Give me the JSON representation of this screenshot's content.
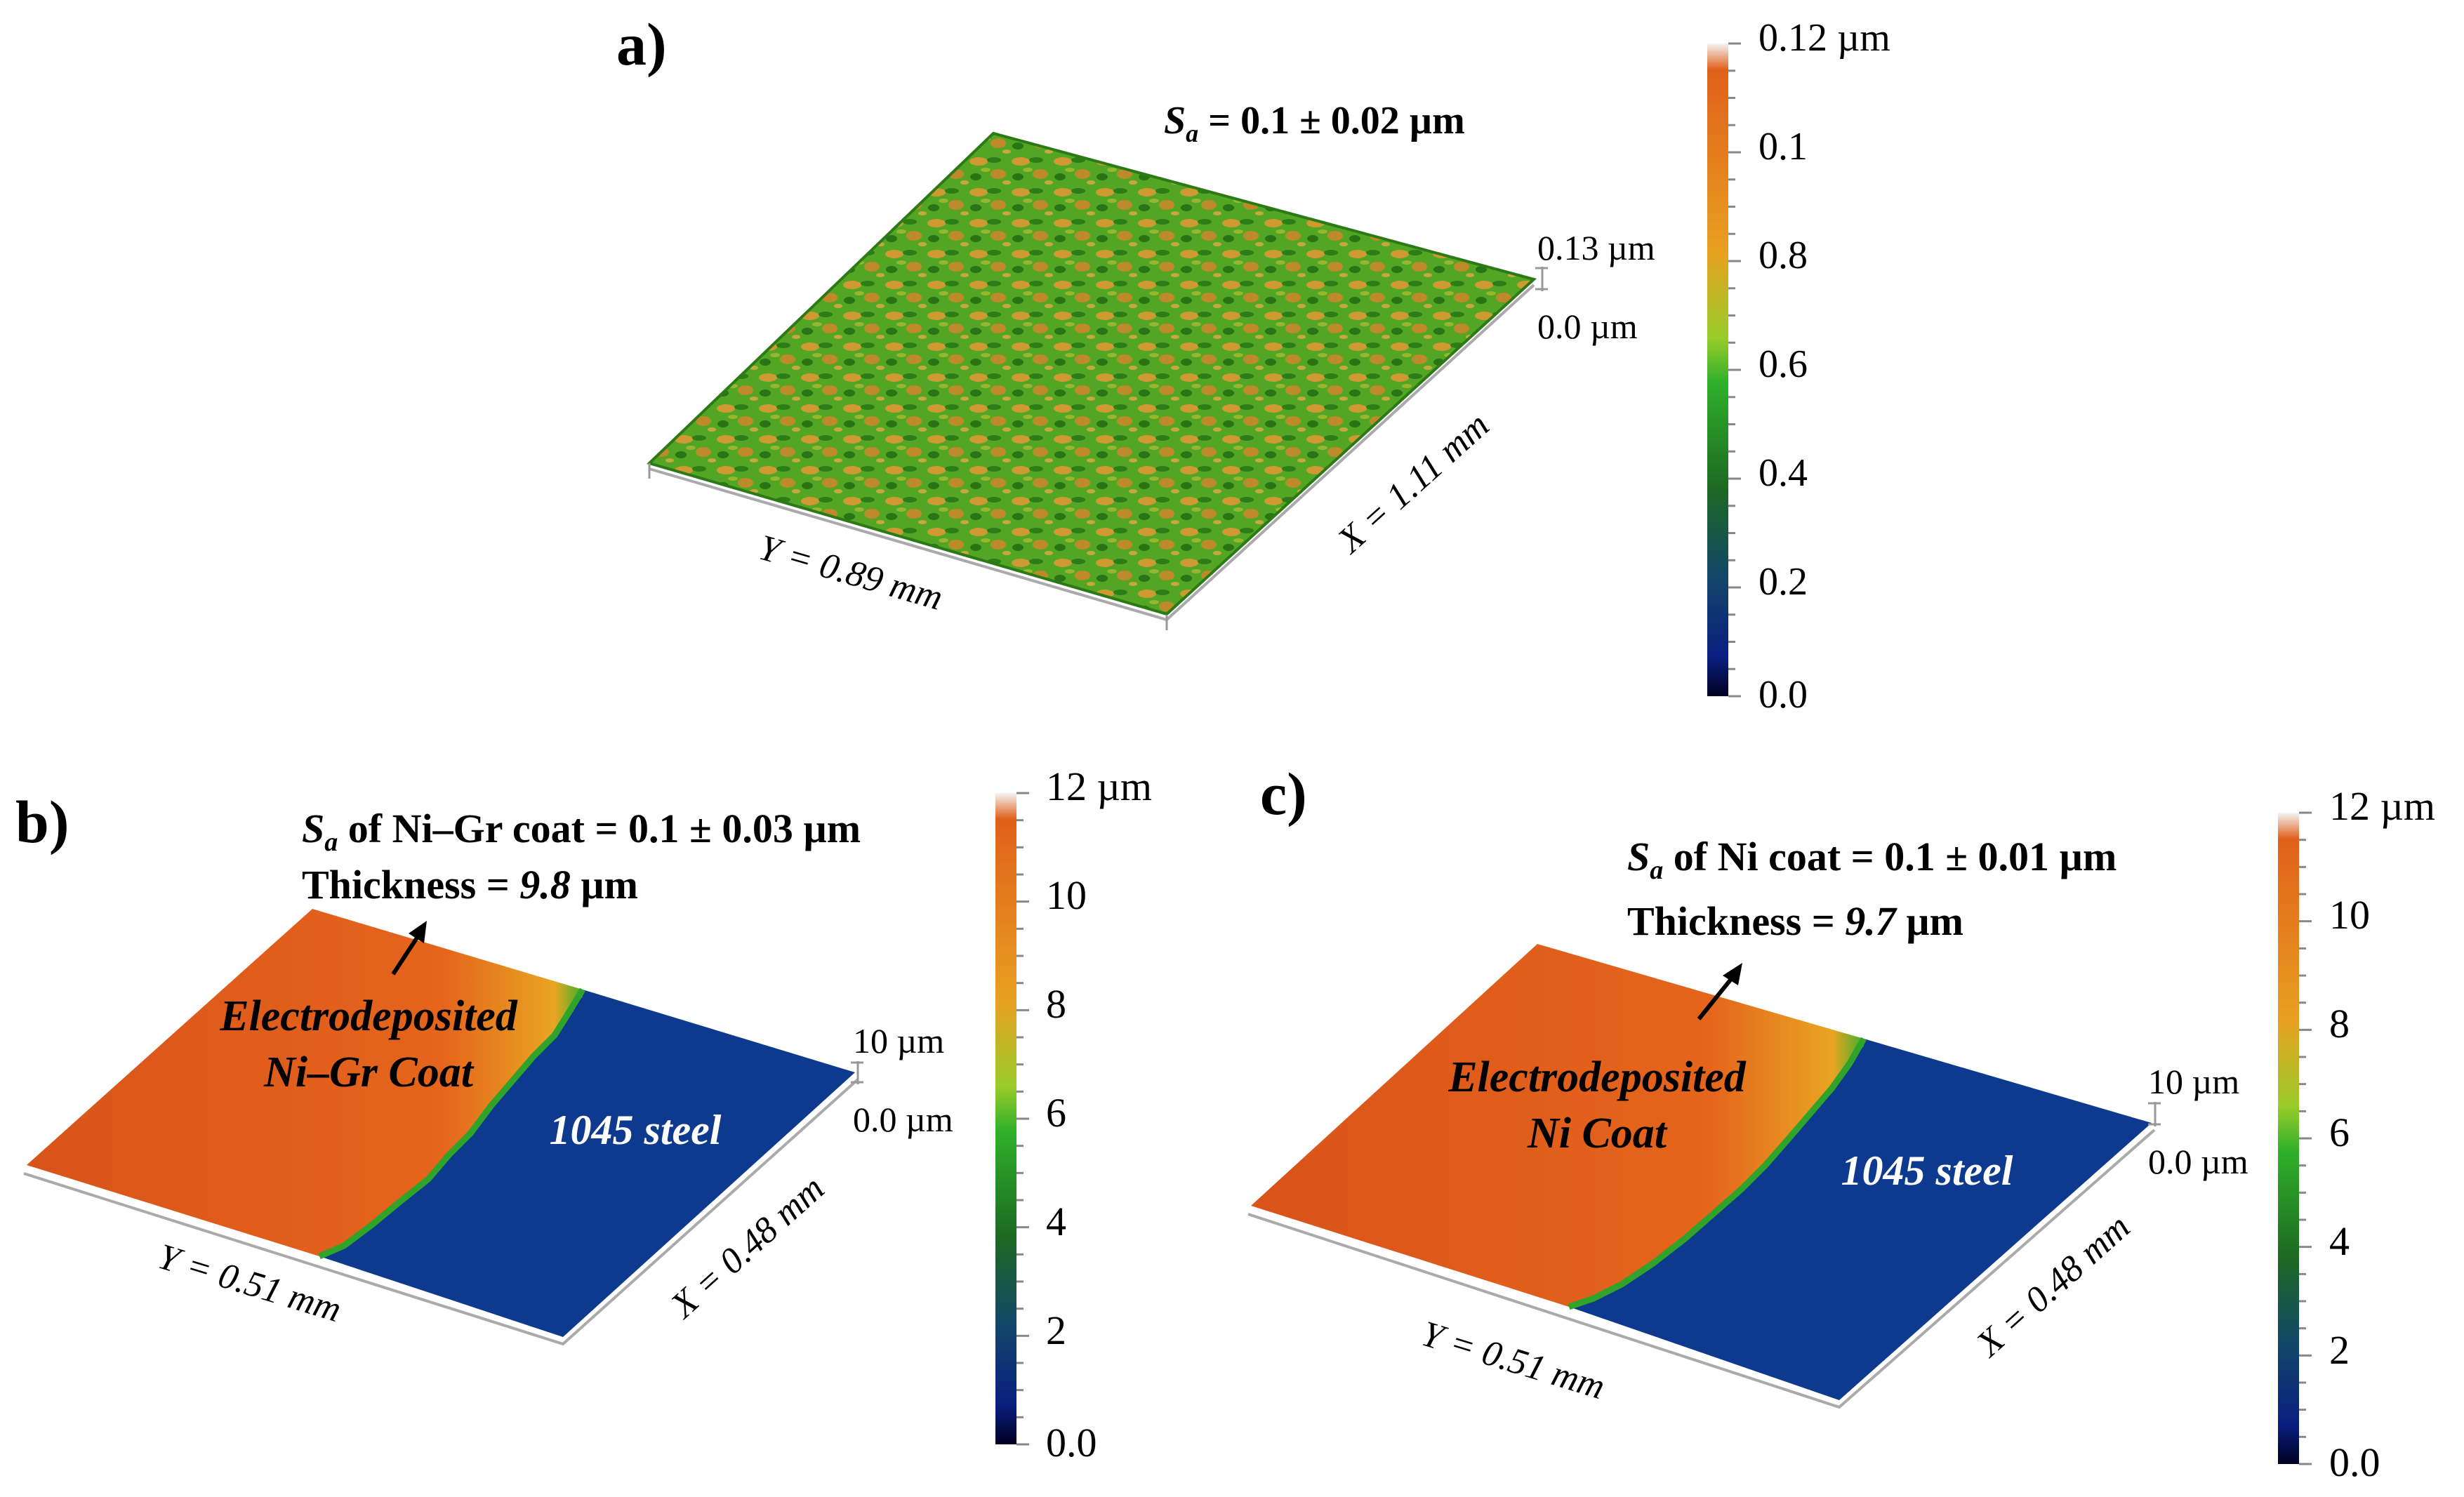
{
  "figure": {
    "panels": [
      {
        "id": "a",
        "label": "a)",
        "sa_symbol": "S",
        "sa_subscript": "a",
        "sa_text": " = 0.1 ± 0.02 µm",
        "z_max_label": "0.13 µm",
        "z_min_label": "0.0 µm",
        "y_dim_label": "Y = 0.89 mm",
        "x_dim_label": "X = 1.11 mm",
        "colorbar_ticks": [
          "0.12 µm",
          "0.1",
          "0.8",
          "0.6",
          "0.4",
          "0.2",
          "0.0"
        ]
      },
      {
        "id": "b",
        "label": "b)",
        "sa_symbol": "S",
        "sa_subscript": "a",
        "sa_text": " of Ni–Gr coat = 0.1 ± 0.03 µm",
        "thickness_prefix": "Thickness = ",
        "thickness_value": "9.8",
        "thickness_unit": " µm",
        "coat_label_line1": "Electrodeposited",
        "coat_label_line2": "Ni–Gr Coat",
        "substrate_label": "1045 steel",
        "z_max_label": "10 µm",
        "z_min_label": "0.0 µm",
        "y_dim_label": "Y = 0.51 mm",
        "x_dim_label": "X = 0.48 mm",
        "colorbar_ticks": [
          "12 µm",
          "10",
          "8",
          "6",
          "4",
          "2",
          "0.0"
        ]
      },
      {
        "id": "c",
        "label": "c)",
        "sa_symbol": "S",
        "sa_subscript": "a",
        "sa_text": " of Ni coat = 0.1 ± 0.01 µm",
        "thickness_prefix": "Thickness = ",
        "thickness_value": "9.7",
        "thickness_unit": " µm",
        "coat_label_line1": "Electrodeposited",
        "coat_label_line2": "Ni Coat",
        "substrate_label": "1045 steel",
        "z_max_label": "10 µm",
        "z_min_label": "0.0 µm",
        "y_dim_label": "Y = 0.51 mm",
        "x_dim_label": "X = 0.48 mm",
        "colorbar_ticks": [
          "12 µm",
          "10",
          "8",
          "6",
          "4",
          "2",
          "0.0"
        ]
      }
    ]
  },
  "colors": {
    "coat_orange": "#e0601a",
    "steel_blue": "#0d3a8e",
    "surface_green": "#3a9a1e",
    "surface_dark_green": "#1f6e12",
    "surface_orange": "#e09030",
    "text": "#000000",
    "label_white": "#ffffff"
  }
}
